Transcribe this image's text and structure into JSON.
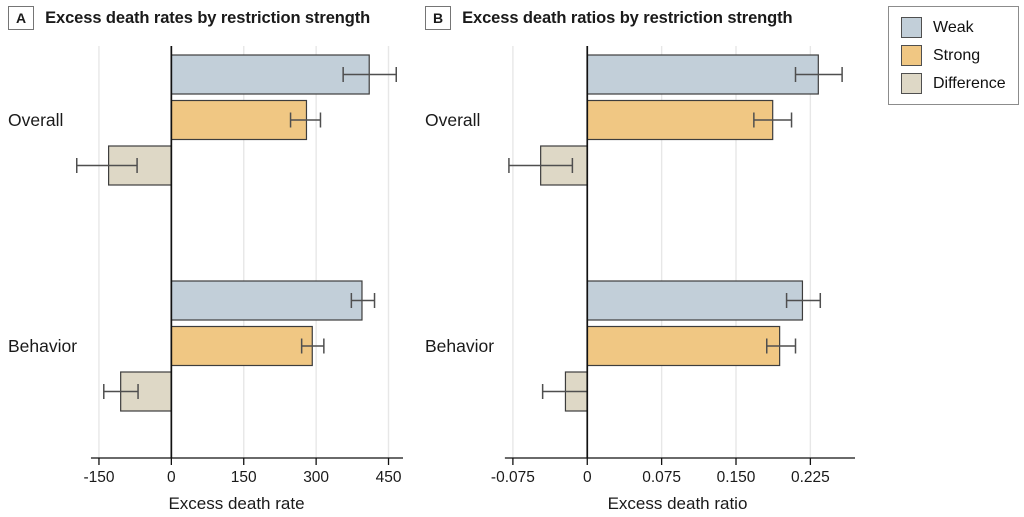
{
  "legend": {
    "position": "top-right",
    "items": [
      {
        "label": "Weak",
        "color": "#c2cfd9"
      },
      {
        "label": "Strong",
        "color": "#f0c783"
      },
      {
        "label": "Difference",
        "color": "#ded8c6"
      }
    ]
  },
  "colors": {
    "grid": "#e7e7e7",
    "axis": "#111111",
    "error_bar": "#4f4f4f",
    "bar_border": "#3d3d3d"
  },
  "chart_data": [
    {
      "type": "bar",
      "orientation": "horizontal",
      "panel_label": "A",
      "title": "Excess death rates by restriction strength",
      "xlabel": "Excess death rate",
      "ylabel": "",
      "categories": [
        "Overall",
        "Behavior"
      ],
      "series": [
        {
          "name": "Weak",
          "color": "#c2cfd9",
          "values": [
            410,
            395
          ],
          "ci_low": [
            356,
            373
          ],
          "ci_high": [
            466,
            421
          ]
        },
        {
          "name": "Strong",
          "color": "#f0c783",
          "values": [
            280,
            292
          ],
          "ci_low": [
            247,
            270
          ],
          "ci_high": [
            309,
            316
          ]
        },
        {
          "name": "Difference",
          "color": "#ded8c6",
          "values": [
            -130,
            -105
          ],
          "ci_low": [
            -196,
            -140
          ],
          "ci_high": [
            -71,
            -69
          ]
        }
      ],
      "xticks": [
        -150,
        0,
        150,
        300,
        450
      ],
      "xtick_labels": [
        "-150",
        "0",
        "150",
        "300",
        "450"
      ],
      "xlim": [
        -210,
        480
      ],
      "grid": true
    },
    {
      "type": "bar",
      "orientation": "horizontal",
      "panel_label": "B",
      "title": "Excess death ratios by restriction strength",
      "xlabel": "Excess death ratio",
      "ylabel": "",
      "categories": [
        "Overall",
        "Behavior"
      ],
      "series": [
        {
          "name": "Weak",
          "color": "#c2cfd9",
          "values": [
            0.233,
            0.217
          ],
          "ci_low": [
            0.21,
            0.201
          ],
          "ci_high": [
            0.257,
            0.235
          ]
        },
        {
          "name": "Strong",
          "color": "#f0c783",
          "values": [
            0.187,
            0.194
          ],
          "ci_low": [
            0.168,
            0.181
          ],
          "ci_high": [
            0.206,
            0.21
          ]
        },
        {
          "name": "Difference",
          "color": "#ded8c6",
          "values": [
            -0.047,
            -0.022
          ],
          "ci_low": [
            -0.079,
            -0.045
          ],
          "ci_high": [
            -0.015,
            0.0
          ]
        }
      ],
      "xticks": [
        -0.075,
        0,
        0.075,
        0.15,
        0.225
      ],
      "xtick_labels": [
        "-0.075",
        "0",
        "0.075",
        "0.150",
        "0.225"
      ],
      "xlim": [
        -0.088,
        0.27
      ],
      "grid": true
    }
  ]
}
